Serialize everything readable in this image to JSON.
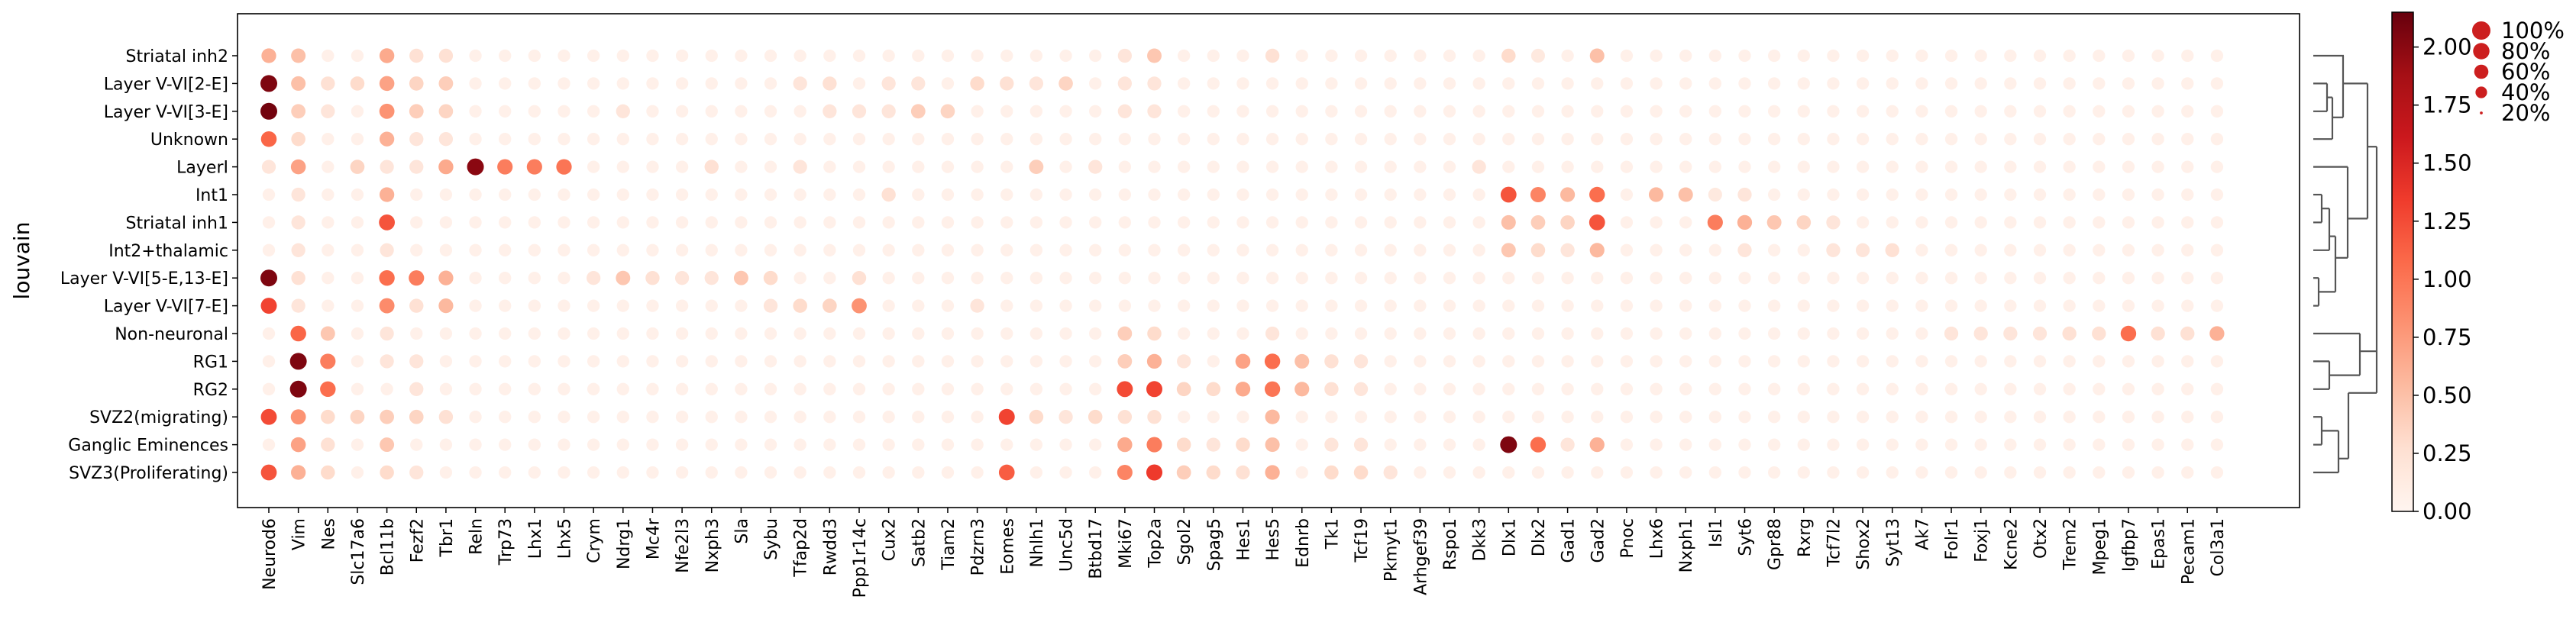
{
  "chart_data": {
    "type": "dotplot",
    "ylabel": "louvain",
    "genes": [
      "Neurod6",
      "Vim",
      "Nes",
      "Slc17a6",
      "Bcl11b",
      "Fezf2",
      "Tbr1",
      "Reln",
      "Trp73",
      "Lhx1",
      "Lhx5",
      "Crym",
      "Ndrg1",
      "Mc4r",
      "Nfe2l3",
      "Nxph3",
      "Sla",
      "Sybu",
      "Tfap2d",
      "Rwdd3",
      "Ppp1r14c",
      "Cux2",
      "Satb2",
      "Tiam2",
      "Pdzrn3",
      "Eomes",
      "Nhlh1",
      "Unc5d",
      "Btbd17",
      "Mki67",
      "Top2a",
      "Sgol2",
      "Spag5",
      "Hes1",
      "Hes5",
      "Ednrb",
      "Tk1",
      "Tcf19",
      "Pkmyt1",
      "Arhgef39",
      "Rspo1",
      "Dkk3",
      "Dlx1",
      "Dlx2",
      "Gad1",
      "Gad2",
      "Pnoc",
      "Lhx6",
      "Nxph1",
      "Isl1",
      "Syt6",
      "Gpr88",
      "Rxrg",
      "Tcf7l2",
      "Shox2",
      "Syt13",
      "Ak7",
      "Folr1",
      "Foxj1",
      "Kcne2",
      "Otx2",
      "Trem2",
      "Mpeg1",
      "Igfbp7",
      "Epas1",
      "Pecam1",
      "Col3a1"
    ],
    "groups": [
      "Striatal inh2",
      "Layer V-VI[2-E]",
      "Layer V-VI[3-E]",
      "Unknown",
      "LayerI",
      "Int1",
      "Striatal inh1",
      "Int2+thalamic",
      "Layer V-VI[5-E,13-E]",
      "Layer V-VI[7-E]",
      "Non-neuronal",
      "RG1",
      "RG2",
      "SVZ2(migrating)",
      "Ganglic Eminences",
      "SVZ3(Proliferating)"
    ],
    "mean_expression_overrides": [
      [
        "Striatal inh2",
        "Neurod6",
        0.6
      ],
      [
        "Striatal inh2",
        "Vim",
        0.5
      ],
      [
        "Striatal inh2",
        "Bcl11b",
        0.65
      ],
      [
        "Striatal inh2",
        "Fezf2",
        0.25
      ],
      [
        "Striatal inh2",
        "Tbr1",
        0.25
      ],
      [
        "Striatal inh2",
        "Top2a",
        0.45
      ],
      [
        "Striatal inh2",
        "Mki67",
        0.2
      ],
      [
        "Striatal inh2",
        "Hes5",
        0.25
      ],
      [
        "Striatal inh2",
        "Gad2",
        0.5
      ],
      [
        "Striatal inh2",
        "Dlx1",
        0.3
      ],
      [
        "Striatal inh2",
        "Dlx2",
        0.15
      ],
      [
        "Layer V-VI[2-E]",
        "Neurod6",
        2.05
      ],
      [
        "Layer V-VI[2-E]",
        "Vim",
        0.5
      ],
      [
        "Layer V-VI[2-E]",
        "Nes",
        0.25
      ],
      [
        "Layer V-VI[2-E]",
        "Slc17a6",
        0.3
      ],
      [
        "Layer V-VI[2-E]",
        "Bcl11b",
        0.7
      ],
      [
        "Layer V-VI[2-E]",
        "Fezf2",
        0.35
      ],
      [
        "Layer V-VI[2-E]",
        "Tbr1",
        0.4
      ],
      [
        "Layer V-VI[2-E]",
        "Unc5d",
        0.35
      ],
      [
        "Layer V-VI[2-E]",
        "Pdzrn3",
        0.3
      ],
      [
        "Layer V-VI[2-E]",
        "Eomes",
        0.25
      ],
      [
        "Layer V-VI[2-E]",
        "Rwdd3",
        0.25
      ],
      [
        "Layer V-VI[2-E]",
        "Tfap2d",
        0.2
      ],
      [
        "Layer V-VI[2-E]",
        "Cux2",
        0.2
      ],
      [
        "Layer V-VI[2-E]",
        "Satb2",
        0.2
      ],
      [
        "Layer V-VI[2-E]",
        "Nhlh1",
        0.2
      ],
      [
        "Layer V-VI[2-E]",
        "Mki67",
        0.2
      ],
      [
        "Layer V-VI[2-E]",
        "Top2a",
        0.2
      ],
      [
        "Layer V-VI[3-E]",
        "Neurod6",
        2.1
      ],
      [
        "Layer V-VI[3-E]",
        "Vim",
        0.4
      ],
      [
        "Layer V-VI[3-E]",
        "Nes",
        0.2
      ],
      [
        "Layer V-VI[3-E]",
        "Bcl11b",
        0.8
      ],
      [
        "Layer V-VI[3-E]",
        "Fezf2",
        0.4
      ],
      [
        "Layer V-VI[3-E]",
        "Tbr1",
        0.35
      ],
      [
        "Layer V-VI[3-E]",
        "Satb2",
        0.4
      ],
      [
        "Layer V-VI[3-E]",
        "Tiam2",
        0.35
      ],
      [
        "Layer V-VI[3-E]",
        "Cux2",
        0.2
      ],
      [
        "Layer V-VI[3-E]",
        "Ppp1r14c",
        0.2
      ],
      [
        "Layer V-VI[3-E]",
        "Rwdd3",
        0.2
      ],
      [
        "Layer V-VI[3-E]",
        "Ndrg1",
        0.2
      ],
      [
        "Layer V-VI[3-E]",
        "Mki67",
        0.2
      ],
      [
        "Layer V-VI[3-E]",
        "Top2a",
        0.2
      ],
      [
        "Unknown",
        "Neurod6",
        1.1
      ],
      [
        "Unknown",
        "Vim",
        0.3
      ],
      [
        "Unknown",
        "Bcl11b",
        0.6
      ],
      [
        "Unknown",
        "Fezf2",
        0.2
      ],
      [
        "Unknown",
        "Tbr1",
        0.2
      ],
      [
        "LayerI",
        "Reln",
        2.0
      ],
      [
        "LayerI",
        "Trp73",
        0.95
      ],
      [
        "LayerI",
        "Lhx1",
        0.95
      ],
      [
        "LayerI",
        "Lhx5",
        1.0
      ],
      [
        "LayerI",
        "Tbr1",
        0.65
      ],
      [
        "LayerI",
        "Vim",
        0.7
      ],
      [
        "LayerI",
        "Slc17a6",
        0.35
      ],
      [
        "LayerI",
        "Nhlh1",
        0.4
      ],
      [
        "LayerI",
        "Nxph3",
        0.25
      ],
      [
        "LayerI",
        "Dkk3",
        0.2
      ],
      [
        "LayerI",
        "Neurod6",
        0.2
      ],
      [
        "LayerI",
        "Bcl11b",
        0.2
      ],
      [
        "LayerI",
        "Fezf2",
        0.2
      ],
      [
        "LayerI",
        "Btbd17",
        0.2
      ],
      [
        "LayerI",
        "Tfap2d",
        0.2
      ],
      [
        "Int1",
        "Dlx1",
        1.2
      ],
      [
        "Int1",
        "Dlx2",
        0.9
      ],
      [
        "Int1",
        "Gad1",
        0.55
      ],
      [
        "Int1",
        "Gad2",
        1.05
      ],
      [
        "Int1",
        "Lhx6",
        0.55
      ],
      [
        "Int1",
        "Nxph1",
        0.5
      ],
      [
        "Int1",
        "Bcl11b",
        0.6
      ],
      [
        "Int1",
        "Cux2",
        0.25
      ],
      [
        "Int1",
        "Vim",
        0.2
      ],
      [
        "Int1",
        "Syt6",
        0.2
      ],
      [
        "Int1",
        "Isl1",
        0.15
      ],
      [
        "Striatal inh1",
        "Bcl11b",
        1.2
      ],
      [
        "Striatal inh1",
        "Isl1",
        0.95
      ],
      [
        "Striatal inh1",
        "Syt6",
        0.6
      ],
      [
        "Striatal inh1",
        "Gpr88",
        0.45
      ],
      [
        "Striatal inh1",
        "Rxrg",
        0.35
      ],
      [
        "Striatal inh1",
        "Gad2",
        1.2
      ],
      [
        "Striatal inh1",
        "Dlx1",
        0.5
      ],
      [
        "Striatal inh1",
        "Dlx2",
        0.4
      ],
      [
        "Striatal inh1",
        "Gad1",
        0.35
      ],
      [
        "Striatal inh1",
        "Vim",
        0.2
      ],
      [
        "Striatal inh1",
        "Tcf7l2",
        0.2
      ],
      [
        "Int2+thalamic",
        "Dlx1",
        0.45
      ],
      [
        "Int2+thalamic",
        "Dlx2",
        0.3
      ],
      [
        "Int2+thalamic",
        "Gad2",
        0.55
      ],
      [
        "Int2+thalamic",
        "Gad1",
        0.2
      ],
      [
        "Int2+thalamic",
        "Syt13",
        0.25
      ],
      [
        "Int2+thalamic",
        "Shox2",
        0.2
      ],
      [
        "Int2+thalamic",
        "Tcf7l2",
        0.2
      ],
      [
        "Int2+thalamic",
        "Syt6",
        0.2
      ],
      [
        "Int2+thalamic",
        "Bcl11b",
        0.2
      ],
      [
        "Int2+thalamic",
        "Vim",
        0.2
      ],
      [
        "Layer V-VI[5-E,13-E]",
        "Neurod6",
        2.05
      ],
      [
        "Layer V-VI[5-E,13-E]",
        "Bcl11b",
        1.05
      ],
      [
        "Layer V-VI[5-E,13-E]",
        "Fezf2",
        0.95
      ],
      [
        "Layer V-VI[5-E,13-E]",
        "Tbr1",
        0.6
      ],
      [
        "Layer V-VI[5-E,13-E]",
        "Vim",
        0.25
      ],
      [
        "Layer V-VI[5-E,13-E]",
        "Ndrg1",
        0.45
      ],
      [
        "Layer V-VI[5-E,13-E]",
        "Sla",
        0.45
      ],
      [
        "Layer V-VI[5-E,13-E]",
        "Sybu",
        0.3
      ],
      [
        "Layer V-VI[5-E,13-E]",
        "Crym",
        0.2
      ],
      [
        "Layer V-VI[5-E,13-E]",
        "Mc4r",
        0.25
      ],
      [
        "Layer V-VI[5-E,13-E]",
        "Nfe2l3",
        0.2
      ],
      [
        "Layer V-VI[5-E,13-E]",
        "Nxph3",
        0.2
      ],
      [
        "Layer V-VI[5-E,13-E]",
        "Ppp1r14c",
        0.25
      ],
      [
        "Layer V-VI[7-E]",
        "Neurod6",
        1.3
      ],
      [
        "Layer V-VI[7-E]",
        "Bcl11b",
        0.85
      ],
      [
        "Layer V-VI[7-E]",
        "Tbr1",
        0.55
      ],
      [
        "Layer V-VI[7-E]",
        "Fezf2",
        0.25
      ],
      [
        "Layer V-VI[7-E]",
        "Ppp1r14c",
        0.8
      ],
      [
        "Layer V-VI[7-E]",
        "Rwdd3",
        0.35
      ],
      [
        "Layer V-VI[7-E]",
        "Tfap2d",
        0.3
      ],
      [
        "Layer V-VI[7-E]",
        "Vim",
        0.2
      ],
      [
        "Layer V-VI[7-E]",
        "Sybu",
        0.2
      ],
      [
        "Layer V-VI[7-E]",
        "Pdzrn3",
        0.2
      ],
      [
        "Non-neuronal",
        "Igfbp7",
        1.05
      ],
      [
        "Non-neuronal",
        "Col3a1",
        0.6
      ],
      [
        "Non-neuronal",
        "Vim",
        1.1
      ],
      [
        "Non-neuronal",
        "Nes",
        0.45
      ],
      [
        "Non-neuronal",
        "Mki67",
        0.4
      ],
      [
        "Non-neuronal",
        "Top2a",
        0.3
      ],
      [
        "Non-neuronal",
        "Epas1",
        0.25
      ],
      [
        "Non-neuronal",
        "Pecam1",
        0.25
      ],
      [
        "Non-neuronal",
        "Trem2",
        0.25
      ],
      [
        "Non-neuronal",
        "Mpeg1",
        0.25
      ],
      [
        "Non-neuronal",
        "Otx2",
        0.2
      ],
      [
        "Non-neuronal",
        "Kcne2",
        0.2
      ],
      [
        "Non-neuronal",
        "Folr1",
        0.2
      ],
      [
        "Non-neuronal",
        "Foxj1",
        0.2
      ],
      [
        "Non-neuronal",
        "Bcl11b",
        0.2
      ],
      [
        "Non-neuronal",
        "Hes5",
        0.2
      ],
      [
        "RG1",
        "Vim",
        2.05
      ],
      [
        "RG1",
        "Nes",
        0.95
      ],
      [
        "RG1",
        "Hes5",
        1.05
      ],
      [
        "RG1",
        "Hes1",
        0.7
      ],
      [
        "RG1",
        "Ednrb",
        0.5
      ],
      [
        "RG1",
        "Top2a",
        0.6
      ],
      [
        "RG1",
        "Mki67",
        0.4
      ],
      [
        "RG1",
        "Tk1",
        0.25
      ],
      [
        "RG1",
        "Sgol2",
        0.2
      ],
      [
        "RG1",
        "Fezf2",
        0.2
      ],
      [
        "RG1",
        "Bcl11b",
        0.2
      ],
      [
        "RG1",
        "Tcf19",
        0.2
      ],
      [
        "RG2",
        "Vim",
        2.05
      ],
      [
        "RG2",
        "Nes",
        1.05
      ],
      [
        "RG2",
        "Mki67",
        1.25
      ],
      [
        "RG2",
        "Top2a",
        1.3
      ],
      [
        "RG2",
        "Hes5",
        1.0
      ],
      [
        "RG2",
        "Hes1",
        0.65
      ],
      [
        "RG2",
        "Ednrb",
        0.55
      ],
      [
        "RG2",
        "Sgol2",
        0.35
      ],
      [
        "RG2",
        "Spag5",
        0.3
      ],
      [
        "RG2",
        "Tk1",
        0.25
      ],
      [
        "RG2",
        "Tcf19",
        0.2
      ],
      [
        "RG2",
        "Fezf2",
        0.2
      ],
      [
        "SVZ2(migrating)",
        "Neurod6",
        1.25
      ],
      [
        "SVZ2(migrating)",
        "Eomes",
        1.3
      ],
      [
        "SVZ2(migrating)",
        "Vim",
        0.8
      ],
      [
        "SVZ2(migrating)",
        "Nes",
        0.3
      ],
      [
        "SVZ2(migrating)",
        "Slc17a6",
        0.35
      ],
      [
        "SVZ2(migrating)",
        "Bcl11b",
        0.4
      ],
      [
        "SVZ2(migrating)",
        "Fezf2",
        0.35
      ],
      [
        "SVZ2(migrating)",
        "Tbr1",
        0.25
      ],
      [
        "SVZ2(migrating)",
        "Nhlh1",
        0.3
      ],
      [
        "SVZ2(migrating)",
        "Unc5d",
        0.2
      ],
      [
        "SVZ2(migrating)",
        "Btbd17",
        0.3
      ],
      [
        "SVZ2(migrating)",
        "Hes5",
        0.55
      ],
      [
        "SVZ2(migrating)",
        "Mki67",
        0.25
      ],
      [
        "SVZ2(migrating)",
        "Top2a",
        0.25
      ],
      [
        "Ganglic Eminences",
        "Dlx1",
        2.05
      ],
      [
        "Ganglic Eminences",
        "Dlx2",
        1.05
      ],
      [
        "Ganglic Eminences",
        "Gad2",
        0.6
      ],
      [
        "Ganglic Eminences",
        "Vim",
        0.7
      ],
      [
        "Ganglic Eminences",
        "Nes",
        0.25
      ],
      [
        "Ganglic Eminences",
        "Mki67",
        0.65
      ],
      [
        "Ganglic Eminences",
        "Top2a",
        0.95
      ],
      [
        "Ganglic Eminences",
        "Sgol2",
        0.3
      ],
      [
        "Ganglic Eminences",
        "Spag5",
        0.2
      ],
      [
        "Ganglic Eminences",
        "Hes5",
        0.5
      ],
      [
        "Ganglic Eminences",
        "Hes1",
        0.3
      ],
      [
        "Ganglic Eminences",
        "Tk1",
        0.2
      ],
      [
        "Ganglic Eminences",
        "Tcf19",
        0.2
      ],
      [
        "Ganglic Eminences",
        "Bcl11b",
        0.45
      ],
      [
        "Ganglic Eminences",
        "Gad1",
        0.2
      ],
      [
        "SVZ3(Proliferating)",
        "Neurod6",
        1.2
      ],
      [
        "SVZ3(Proliferating)",
        "Eomes",
        1.15
      ],
      [
        "SVZ3(Proliferating)",
        "Mki67",
        0.9
      ],
      [
        "SVZ3(Proliferating)",
        "Top2a",
        1.35
      ],
      [
        "SVZ3(Proliferating)",
        "Vim",
        0.6
      ],
      [
        "SVZ3(Proliferating)",
        "Nes",
        0.3
      ],
      [
        "SVZ3(Proliferating)",
        "Hes5",
        0.6
      ],
      [
        "SVZ3(Proliferating)",
        "Sgol2",
        0.4
      ],
      [
        "SVZ3(Proliferating)",
        "Spag5",
        0.3
      ],
      [
        "SVZ3(Proliferating)",
        "Hes1",
        0.25
      ],
      [
        "SVZ3(Proliferating)",
        "Tk1",
        0.3
      ],
      [
        "SVZ3(Proliferating)",
        "Tcf19",
        0.3
      ],
      [
        "SVZ3(Proliferating)",
        "Pkmyt1",
        0.2
      ],
      [
        "SVZ3(Proliferating)",
        "Bcl11b",
        0.3
      ],
      [
        "SVZ3(Proliferating)",
        "Fezf2",
        0.2
      ]
    ],
    "default_mean_expression": 0.06,
    "default_fraction": 0.55,
    "colorbar": {
      "colormap": "Reds",
      "range": [
        0.0,
        2.15
      ],
      "ticks": [
        "0.00",
        "0.25",
        "0.50",
        "0.75",
        "1.00",
        "1.25",
        "1.50",
        "1.75",
        "2.00"
      ],
      "tick_values": [
        0,
        0.25,
        0.5,
        0.75,
        1.0,
        1.25,
        1.5,
        1.75,
        2.0
      ]
    },
    "size_legend": {
      "labels": [
        "100%",
        "80%",
        "60%",
        "40%",
        "20%"
      ],
      "fractions": [
        1.0,
        0.8,
        0.6,
        0.4,
        0.2
      ],
      "color": "#cc1f1f"
    },
    "dendrogram_order": [
      "Striatal inh2",
      "Layer V-VI[2-E]",
      "Layer V-VI[3-E]",
      "Unknown",
      "LayerI",
      "Int1",
      "Striatal inh1",
      "Int2+thalamic",
      "Layer V-VI[5-E,13-E]",
      "Layer V-VI[7-E]",
      "Non-neuronal",
      "RG1",
      "RG2",
      "SVZ2(migrating)",
      "Ganglic Eminences",
      "SVZ3(Proliferating)"
    ],
    "grid": false,
    "legend_position": "right"
  }
}
